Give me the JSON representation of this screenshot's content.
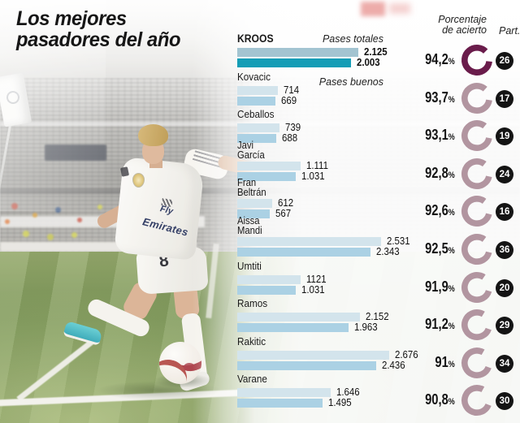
{
  "title": {
    "line1": "Los mejores",
    "line2": "pasadores del año"
  },
  "labels": {
    "pases_totales": "Pases totales",
    "pases_buenos": "Pases buenos",
    "porcentaje_1": "Porcentaje",
    "porcentaje_2": "de acierto",
    "part": "Part."
  },
  "photo": {
    "sponsor_line1": "Fly",
    "sponsor_line2": "Emirates",
    "jersey_number": "8"
  },
  "colors": {
    "bar_totales": "#d3e4ec",
    "bar_buenos": "#abd1e4",
    "bar_totales_highlight": "#a3c4d1",
    "bar_buenos_highlight": "#149db6",
    "ring": "#b295a0",
    "ring_highlight": "#6a1c4b",
    "badge": "#141414"
  },
  "chart_data": {
    "type": "bar",
    "orientation": "horizontal",
    "title": "Los mejores pasadores del año",
    "series_names": [
      "Pases totales",
      "Pases buenos"
    ],
    "highlighted_player": "KROOS",
    "players": [
      {
        "name": "KROOS",
        "name_lines": [
          "KROOS"
        ],
        "pases_totales": 2125,
        "pases_totales_label": "2.125",
        "pases_buenos": 2003,
        "pases_buenos_label": "2.003",
        "accuracy_pct": 94.2,
        "accuracy_label": "94,2",
        "partidos": "26",
        "highlight": true
      },
      {
        "name": "Kovacic",
        "name_lines": [
          "Kovacic"
        ],
        "pases_totales": 714,
        "pases_totales_label": "714",
        "pases_buenos": 669,
        "pases_buenos_label": "669",
        "accuracy_pct": 93.7,
        "accuracy_label": "93,7",
        "partidos": "17"
      },
      {
        "name": "Ceballos",
        "name_lines": [
          "Ceballos"
        ],
        "pases_totales": 739,
        "pases_totales_label": "739",
        "pases_buenos": 688,
        "pases_buenos_label": "688",
        "accuracy_pct": 93.1,
        "accuracy_label": "93,1",
        "partidos": "19"
      },
      {
        "name": "Javi García",
        "name_lines": [
          "Javi",
          "García"
        ],
        "pases_totales": 1111,
        "pases_totales_label": "1.111",
        "pases_buenos": 1031,
        "pases_buenos_label": "1.031",
        "accuracy_pct": 92.8,
        "accuracy_label": "92,8",
        "partidos": "24"
      },
      {
        "name": "Fran Beltrán",
        "name_lines": [
          "Fran",
          "Beltrán"
        ],
        "pases_totales": 612,
        "pases_totales_label": "612",
        "pases_buenos": 567,
        "pases_buenos_label": "567",
        "accuracy_pct": 92.6,
        "accuracy_label": "92,6",
        "partidos": "16"
      },
      {
        "name": "Aissa Mandi",
        "name_lines": [
          "Aissa",
          "Mandi"
        ],
        "pases_totales": 2531,
        "pases_totales_label": "2.531",
        "pases_buenos": 2343,
        "pases_buenos_label": "2.343",
        "accuracy_pct": 92.5,
        "accuracy_label": "92,5",
        "partidos": "36"
      },
      {
        "name": "Umtiti",
        "name_lines": [
          "Umtiti"
        ],
        "pases_totales": 1121,
        "pases_totales_label": "1121",
        "pases_buenos": 1031,
        "pases_buenos_label": "1.031",
        "accuracy_pct": 91.9,
        "accuracy_label": "91,9",
        "partidos": "20"
      },
      {
        "name": "Ramos",
        "name_lines": [
          "Ramos"
        ],
        "pases_totales": 2152,
        "pases_totales_label": "2.152",
        "pases_buenos": 1963,
        "pases_buenos_label": "1.963",
        "accuracy_pct": 91.2,
        "accuracy_label": "91,2",
        "partidos": "29"
      },
      {
        "name": "Rakitic",
        "name_lines": [
          "Rakitic"
        ],
        "pases_totales": 2676,
        "pases_totales_label": "2.676",
        "pases_buenos": 2436,
        "pases_buenos_label": "2.436",
        "accuracy_pct": 91.0,
        "accuracy_label": "91",
        "partidos": "34"
      },
      {
        "name": "Varane",
        "name_lines": [
          "Varane"
        ],
        "pases_totales": 1646,
        "pases_totales_label": "1.646",
        "pases_buenos": 1495,
        "pases_buenos_label": "1.495",
        "accuracy_pct": 90.8,
        "accuracy_label": "90,8",
        "partidos": "30"
      }
    ]
  }
}
